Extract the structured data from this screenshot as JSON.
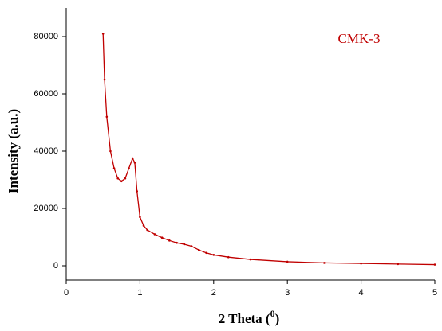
{
  "chart_data": {
    "type": "line",
    "annotation": "CMK-3",
    "ylabel": "Intensity (a.u.)",
    "xlabel": {
      "text": "2 Theta (",
      "superscript": "0",
      "closing": ")"
    },
    "x": [
      0.5,
      0.52,
      0.55,
      0.6,
      0.65,
      0.7,
      0.75,
      0.8,
      0.85,
      0.9,
      0.93,
      0.96,
      1.0,
      1.05,
      1.1,
      1.2,
      1.3,
      1.4,
      1.5,
      1.6,
      1.7,
      1.8,
      1.9,
      2.0,
      2.2,
      2.5,
      3.0,
      3.5,
      4.0,
      4.5,
      5.0
    ],
    "series": [
      {
        "name": "CMK-3",
        "color": "#c00000",
        "values": [
          81000,
          65000,
          52000,
          40000,
          34000,
          30500,
          29500,
          30500,
          34000,
          37500,
          36000,
          26000,
          17000,
          14000,
          12500,
          11000,
          9800,
          8800,
          8000,
          7500,
          6800,
          5500,
          4500,
          3800,
          3000,
          2200,
          1400,
          1000,
          800,
          600,
          400
        ]
      }
    ],
    "xlim": [
      0,
      5
    ],
    "xticks": [
      0,
      1,
      2,
      3,
      4,
      5
    ],
    "ylim": [
      -5000,
      90000
    ],
    "yticks": [
      0,
      20000,
      40000,
      60000,
      80000
    ]
  }
}
